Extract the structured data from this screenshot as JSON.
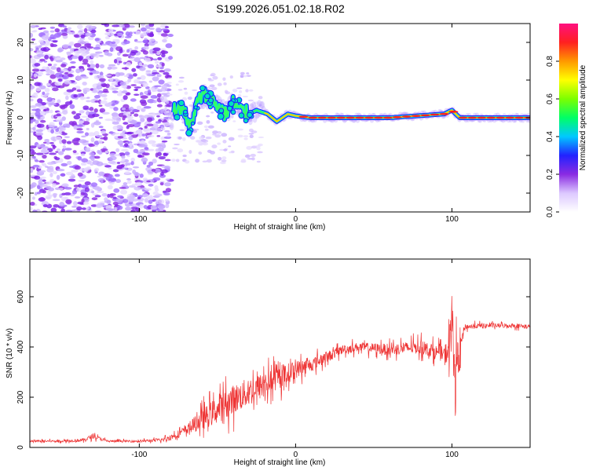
{
  "title": "S199.2026.051.02.18.R02",
  "chart_data": [
    {
      "type": "heatmap",
      "name": "spectrogram",
      "xlabel": "Height of straight line (km)",
      "ylabel": "Frequency (Hz)",
      "xlim": [
        -170,
        150
      ],
      "ylim": [
        -25,
        25
      ],
      "xticks": [
        -100,
        0,
        100
      ],
      "yticks": [
        -20,
        -10,
        0,
        10,
        20
      ],
      "xtick_labels": [
        "-100",
        "0",
        "100"
      ],
      "ytick_labels": [
        "-20",
        "-10",
        "0",
        "10",
        "20"
      ],
      "colorbar": {
        "label": "Normalized spectral amplitude",
        "range": [
          0,
          1
        ],
        "ticks": [
          0.0,
          0.2,
          0.4,
          0.6,
          0.8
        ],
        "tick_labels": [
          "0.0",
          "0.2",
          "0.4",
          "0.6",
          "0.8"
        ],
        "colors": [
          "#ffffff",
          "#dcc8ff",
          "#8a2be2",
          "#2222ff",
          "#00c8ff",
          "#00ff66",
          "#7cff00",
          "#ffff00",
          "#ff9900",
          "#ff2020",
          "#ff1080"
        ]
      },
      "noise_region_x": [
        -170,
        -80
      ],
      "carrier_frequency": 0,
      "trace": [
        {
          "x": -78,
          "f": 2
        },
        {
          "x": -72,
          "f": 3
        },
        {
          "x": -68,
          "f": -3
        },
        {
          "x": -62,
          "f": 5
        },
        {
          "x": -58,
          "f": 6
        },
        {
          "x": -52,
          "f": 4
        },
        {
          "x": -45,
          "f": 1
        },
        {
          "x": -40,
          "f": 4
        },
        {
          "x": -35,
          "f": 2
        },
        {
          "x": -30,
          "f": 1
        },
        {
          "x": -25,
          "f": 2
        },
        {
          "x": -18,
          "f": 1
        },
        {
          "x": -12,
          "f": -1
        },
        {
          "x": -5,
          "f": 1
        },
        {
          "x": 0,
          "f": 0.5
        },
        {
          "x": 10,
          "f": 0
        },
        {
          "x": 60,
          "f": 0
        },
        {
          "x": 95,
          "f": 1
        },
        {
          "x": 100,
          "f": 2
        },
        {
          "x": 105,
          "f": 0
        },
        {
          "x": 150,
          "f": 0
        }
      ]
    },
    {
      "type": "line",
      "name": "snr",
      "xlabel": "Height of straight line (km)",
      "ylabel": "SNR (10 * v/v)",
      "xlim": [
        -170,
        150
      ],
      "ylim": [
        0,
        750
      ],
      "xticks": [
        -100,
        0,
        100
      ],
      "yticks": [
        0,
        200,
        400,
        600
      ],
      "xtick_labels": [
        "-100",
        "0",
        "100"
      ],
      "ytick_labels": [
        "0",
        "200",
        "400",
        "600"
      ],
      "color": "#ee3333",
      "series": [
        {
          "name": "SNR",
          "x": [
            -170,
            -150,
            -135,
            -130,
            -120,
            -100,
            -85,
            -80,
            -70,
            -60,
            -50,
            -40,
            -30,
            -20,
            -10,
            0,
            10,
            20,
            30,
            40,
            60,
            80,
            90,
            95,
            98,
            100,
            102,
            105,
            108,
            120,
            140,
            150
          ],
          "mean": [
            25,
            25,
            30,
            45,
            25,
            25,
            30,
            40,
            70,
            110,
            150,
            190,
            220,
            250,
            280,
            310,
            330,
            360,
            390,
            400,
            390,
            400,
            380,
            370,
            390,
            500,
            300,
            380,
            480,
            485,
            485,
            480
          ],
          "spread": [
            10,
            10,
            15,
            20,
            10,
            10,
            15,
            25,
            40,
            90,
            120,
            130,
            130,
            110,
            100,
            80,
            60,
            50,
            40,
            40,
            50,
            60,
            60,
            70,
            140,
            250,
            250,
            100,
            25,
            20,
            20,
            20
          ]
        }
      ]
    }
  ]
}
